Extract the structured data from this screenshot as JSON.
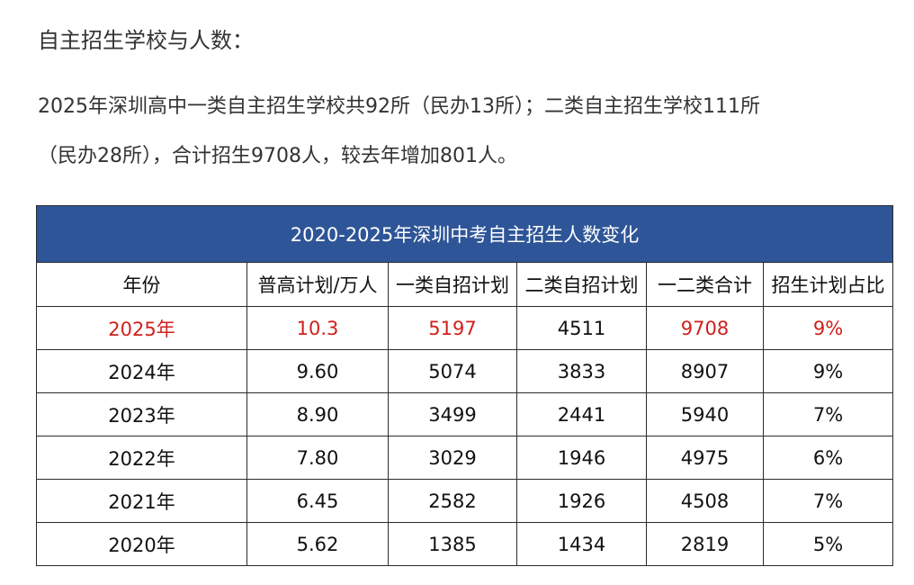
{
  "heading": "自主招生学校与人数：",
  "paragraph": {
    "line1": "2025年深圳高中一类自主招生学校共92所（民办13所）；二类自主招生学校111所",
    "line2": "（民办28所），合计招生9708人，较去年增加801人。"
  },
  "table": {
    "title": "2020-2025年深圳中考自主招生人数变化",
    "headers": [
      "年份",
      "普高计划/万人",
      "一类自招计划",
      "二类自招计划",
      "一二类合计",
      "招生计划占比"
    ],
    "rows": [
      [
        "2025年",
        "10.3",
        "5197",
        "4511",
        "9708",
        "9%"
      ],
      [
        "2024年",
        "9.60",
        "5074",
        "3833",
        "8907",
        "9%"
      ],
      [
        "2023年",
        "8.90",
        "3499",
        "2441",
        "5940",
        "7%"
      ],
      [
        "2022年",
        "7.80",
        "3029",
        "1946",
        "4975",
        "6%"
      ],
      [
        "2021年",
        "6.45",
        "2582",
        "1926",
        "4508",
        "7%"
      ],
      [
        "2020年",
        "5.62",
        "1385",
        "1434",
        "2819",
        "5%"
      ]
    ],
    "highlight_color": "#d0201c",
    "header_bg_color": "#2e5597"
  }
}
